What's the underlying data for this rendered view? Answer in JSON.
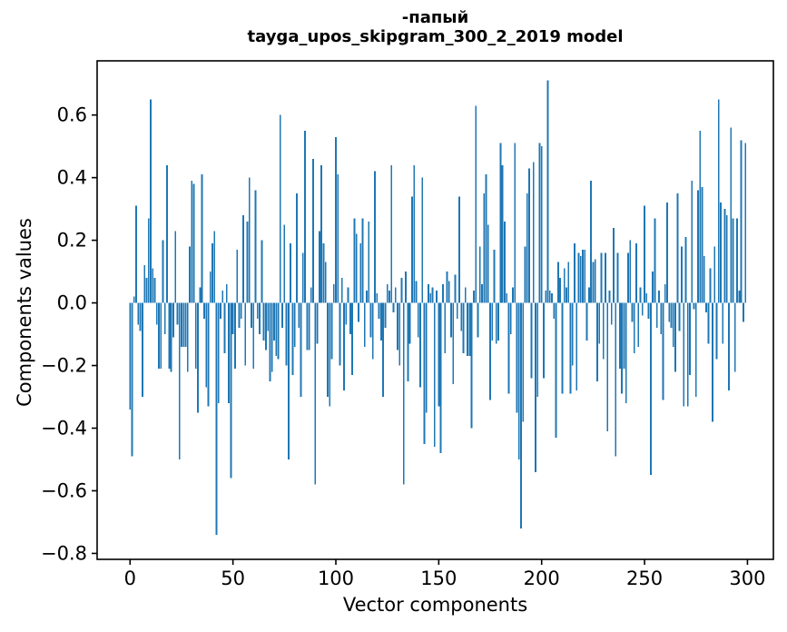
{
  "chart_data": {
    "type": "bar",
    "title_line1": "-папый",
    "title_line2": "tayga_upos_skipgram_300_2_2019 model",
    "xlabel": "Vector components",
    "ylabel": "Components values",
    "x_ticks": [
      0,
      50,
      100,
      150,
      200,
      250,
      300
    ],
    "y_ticks": [
      0.6,
      0.4,
      0.2,
      0.0,
      -0.2,
      -0.4,
      -0.6,
      -0.8
    ],
    "xlim": [
      -16.0,
      312.6
    ],
    "ylim": [
      -0.819,
      0.773
    ],
    "grid": false,
    "legend": null,
    "bar_color": "#1f77b4",
    "n_components": 300,
    "values": [
      -0.34,
      -0.49,
      0.02,
      0.31,
      -0.07,
      -0.09,
      -0.3,
      0.12,
      0.08,
      0.27,
      0.65,
      0.11,
      0.08,
      -0.07,
      -0.21,
      -0.21,
      0.2,
      -0.1,
      0.44,
      -0.21,
      -0.22,
      -0.11,
      0.23,
      -0.07,
      -0.5,
      -0.14,
      -0.14,
      -0.14,
      -0.22,
      0.18,
      0.39,
      0.38,
      -0.21,
      -0.35,
      0.05,
      0.41,
      -0.05,
      -0.27,
      -0.33,
      0.1,
      0.19,
      0.23,
      -0.74,
      -0.32,
      -0.05,
      0.04,
      -0.16,
      0.06,
      -0.32,
      -0.56,
      -0.1,
      -0.21,
      0.17,
      -0.08,
      -0.05,
      0.28,
      -0.2,
      0.26,
      0.4,
      -0.08,
      -0.21,
      0.36,
      -0.05,
      -0.1,
      0.2,
      -0.12,
      -0.15,
      -0.09,
      -0.25,
      -0.22,
      -0.12,
      -0.17,
      -0.18,
      0.6,
      -0.08,
      0.25,
      -0.2,
      -0.5,
      0.19,
      -0.23,
      -0.14,
      0.35,
      -0.08,
      -0.3,
      0.16,
      0.55,
      -0.15,
      -0.15,
      0.05,
      0.46,
      -0.58,
      -0.13,
      0.23,
      0.44,
      0.19,
      0.13,
      -0.3,
      -0.33,
      -0.18,
      0.06,
      0.53,
      0.41,
      -0.2,
      0.08,
      -0.28,
      -0.07,
      0.05,
      -0.1,
      -0.23,
      0.27,
      0.22,
      -0.06,
      0.19,
      0.27,
      -0.14,
      0.04,
      0.26,
      -0.11,
      -0.18,
      0.42,
      0.03,
      -0.05,
      -0.12,
      -0.3,
      -0.08,
      0.06,
      0.04,
      0.44,
      -0.03,
      0.05,
      -0.15,
      -0.2,
      0.08,
      -0.58,
      0.1,
      -0.25,
      -0.13,
      0.34,
      0.44,
      0.07,
      -0.11,
      -0.27,
      0.4,
      -0.45,
      -0.35,
      0.06,
      0.03,
      0.05,
      -0.46,
      0.04,
      -0.33,
      -0.48,
      0.06,
      -0.16,
      0.1,
      0.07,
      -0.11,
      -0.26,
      0.09,
      -0.05,
      0.34,
      -0.09,
      -0.16,
      0.05,
      -0.17,
      -0.17,
      -0.4,
      0.04,
      0.63,
      -0.11,
      0.18,
      0.06,
      0.35,
      0.41,
      0.25,
      -0.31,
      -0.12,
      0.17,
      -0.13,
      -0.12,
      0.51,
      0.44,
      0.26,
      0.03,
      -0.29,
      -0.1,
      0.05,
      0.51,
      -0.35,
      -0.5,
      -0.72,
      -0.38,
      0.18,
      0.35,
      0.43,
      -0.24,
      0.45,
      -0.54,
      -0.3,
      0.51,
      0.5,
      -0.24,
      0.04,
      0.71,
      0.04,
      0.03,
      -0.05,
      -0.43,
      0.13,
      0.08,
      -0.29,
      0.11,
      0.05,
      0.13,
      -0.29,
      -0.2,
      0.19,
      -0.28,
      0.16,
      0.15,
      0.17,
      0.17,
      -0.12,
      0.05,
      0.39,
      0.13,
      0.14,
      -0.25,
      -0.13,
      0.16,
      -0.18,
      0.16,
      -0.41,
      0.04,
      -0.07,
      0.24,
      -0.49,
      0.16,
      -0.21,
      -0.29,
      -0.21,
      -0.32,
      0.16,
      0.2,
      -0.06,
      -0.16,
      0.19,
      -0.14,
      0.05,
      -0.04,
      0.31,
      0.03,
      -0.05,
      -0.55,
      0.1,
      0.27,
      -0.08,
      0.04,
      -0.1,
      -0.31,
      0.06,
      0.32,
      -0.06,
      -0.08,
      -0.14,
      -0.22,
      0.35,
      -0.09,
      0.18,
      -0.33,
      0.21,
      -0.33,
      -0.23,
      0.39,
      -0.02,
      -0.3,
      0.36,
      0.55,
      0.37,
      0.15,
      -0.03,
      -0.13,
      0.11,
      -0.38,
      0.18,
      -0.18,
      0.65,
      0.32,
      -0.13,
      0.3,
      0.28,
      -0.28,
      0.56,
      0.27,
      -0.22,
      0.27,
      0.04,
      0.52,
      -0.06,
      0.51
    ]
  }
}
